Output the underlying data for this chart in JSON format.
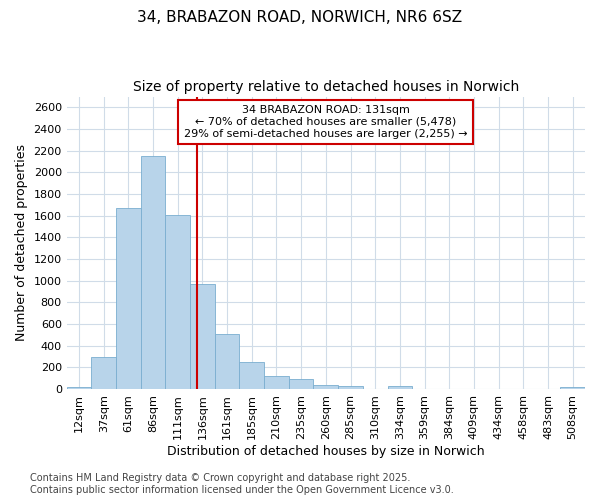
{
  "title": "34, BRABAZON ROAD, NORWICH, NR6 6SZ",
  "subtitle": "Size of property relative to detached houses in Norwich",
  "xlabel": "Distribution of detached houses by size in Norwich",
  "ylabel": "Number of detached properties",
  "categories": [
    "12sqm",
    "37sqm",
    "61sqm",
    "86sqm",
    "111sqm",
    "136sqm",
    "161sqm",
    "185sqm",
    "210sqm",
    "235sqm",
    "260sqm",
    "285sqm",
    "310sqm",
    "334sqm",
    "359sqm",
    "384sqm",
    "409sqm",
    "434sqm",
    "458sqm",
    "483sqm",
    "508sqm"
  ],
  "values": [
    20,
    300,
    1670,
    2150,
    1610,
    970,
    510,
    250,
    120,
    95,
    40,
    25,
    0,
    25,
    5,
    5,
    0,
    0,
    0,
    0,
    15
  ],
  "bar_color": "#b8d4ea",
  "bar_edge_color": "#7aaed0",
  "vline_color": "#cc0000",
  "annotation_text": "34 BRABAZON ROAD: 131sqm\n← 70% of detached houses are smaller (5,478)\n29% of semi-detached houses are larger (2,255) →",
  "annotation_box_color": "#cc0000",
  "ylim": [
    0,
    2700
  ],
  "yticks": [
    0,
    200,
    400,
    600,
    800,
    1000,
    1200,
    1400,
    1600,
    1800,
    2000,
    2200,
    2400,
    2600
  ],
  "footer_line1": "Contains HM Land Registry data © Crown copyright and database right 2025.",
  "footer_line2": "Contains public sector information licensed under the Open Government Licence v3.0.",
  "bg_color": "#ffffff",
  "grid_color": "#d0dce8",
  "title_fontsize": 11,
  "subtitle_fontsize": 10,
  "axis_label_fontsize": 9,
  "tick_fontsize": 8,
  "annotation_fontsize": 8,
  "footer_fontsize": 7
}
